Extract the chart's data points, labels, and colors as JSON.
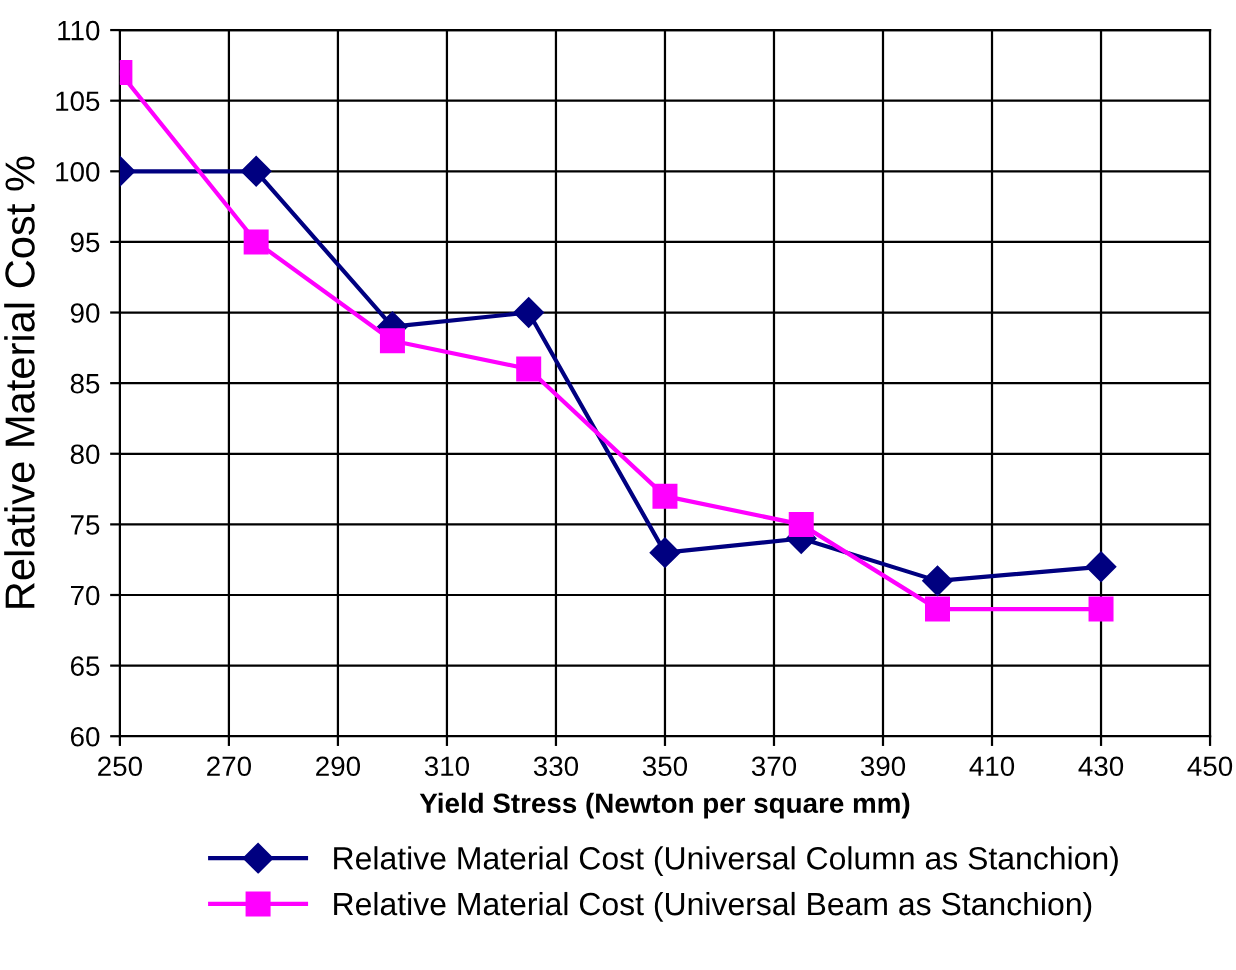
{
  "chart_data": {
    "type": "line",
    "xlabel": "Yield Stress (Newton per square mm)",
    "ylabel": "Relative Material Cost %",
    "x": [
      250,
      275,
      300,
      325,
      350,
      375,
      400,
      430
    ],
    "series": [
      {
        "name": "Relative Material Cost (Universal Column as Stanchion)",
        "color": "#000080",
        "marker": "diamond",
        "values": [
          100,
          100,
          89,
          90,
          73,
          74,
          71,
          72
        ]
      },
      {
        "name": "Relative Material Cost (Universal Beam as Stanchion)",
        "color": "#ff00ff",
        "marker": "square",
        "values": [
          107,
          95,
          88,
          86,
          77,
          75,
          69,
          69
        ]
      }
    ],
    "xlim": [
      250,
      450
    ],
    "xticks": [
      250,
      270,
      290,
      310,
      330,
      350,
      370,
      390,
      410,
      430,
      450
    ],
    "ylim": [
      60,
      110
    ],
    "yticks": [
      60,
      65,
      70,
      75,
      80,
      85,
      90,
      95,
      100,
      105,
      110
    ],
    "grid": true,
    "legend": "bottom",
    "line_style": "solid"
  }
}
